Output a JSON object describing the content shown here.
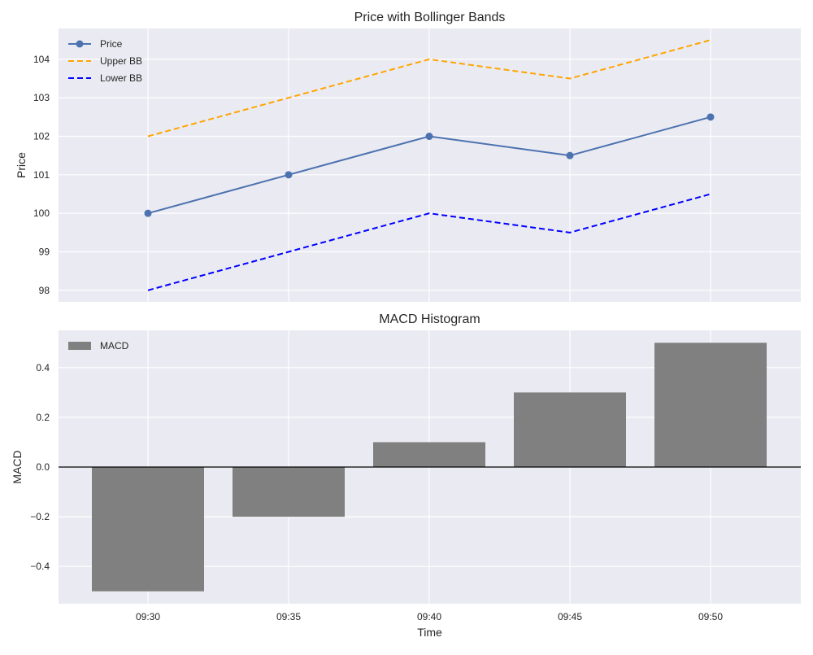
{
  "chart_data": [
    {
      "type": "line",
      "title": "Price with Bollinger Bands",
      "xlabel": "",
      "ylabel": "Price",
      "x": [
        "09:30",
        "09:35",
        "09:40",
        "09:45",
        "09:50"
      ],
      "ylim": [
        97.7,
        104.8
      ],
      "yticks": [
        98,
        99,
        100,
        101,
        102,
        103,
        104
      ],
      "grid": true,
      "legend_position": "top-left",
      "series": [
        {
          "name": "Price",
          "values": [
            100.0,
            101.0,
            102.0,
            101.5,
            102.5
          ],
          "color": "#4c72b0",
          "style": "solid",
          "marker": "circle"
        },
        {
          "name": "Upper BB",
          "values": [
            102.0,
            103.0,
            104.0,
            103.5,
            104.5
          ],
          "color": "#ffa500",
          "style": "dashed"
        },
        {
          "name": "Lower BB",
          "values": [
            98.0,
            99.0,
            100.0,
            99.5,
            100.5
          ],
          "color": "#0000ff",
          "style": "dashed"
        }
      ]
    },
    {
      "type": "bar",
      "title": "MACD Histogram",
      "xlabel": "Time",
      "ylabel": "MACD",
      "categories": [
        "09:30",
        "09:35",
        "09:40",
        "09:45",
        "09:50"
      ],
      "ylim": [
        -0.55,
        0.55
      ],
      "yticks": [
        -0.4,
        -0.2,
        0.0,
        0.2,
        0.4
      ],
      "ytick_labels": [
        "−0.4",
        "−0.2",
        "0.0",
        "0.2",
        "0.4"
      ],
      "grid": true,
      "legend_position": "top-left",
      "zero_line": true,
      "series": [
        {
          "name": "MACD",
          "values": [
            -0.5,
            -0.2,
            0.1,
            0.3,
            0.5
          ],
          "color": "#808080"
        }
      ]
    }
  ]
}
